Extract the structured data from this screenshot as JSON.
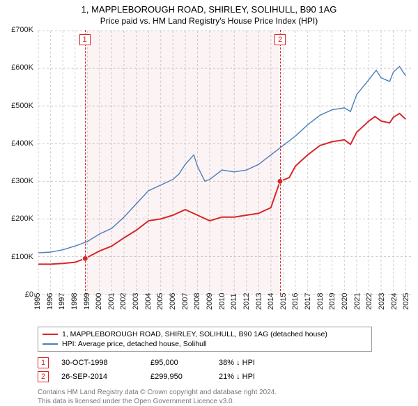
{
  "title": "1, MAPPLEBOROUGH ROAD, SHIRLEY, SOLIHULL, B90 1AG",
  "subtitle": "Price paid vs. HM Land Registry's House Price Index (HPI)",
  "chart": {
    "type": "line",
    "xlim": [
      1995,
      2025.5
    ],
    "ylim": [
      0,
      700000
    ],
    "ytick_step": 100000,
    "yticks": [
      "£0",
      "£100K",
      "£200K",
      "£300K",
      "£400K",
      "£500K",
      "£600K",
      "£700K"
    ],
    "xticks": [
      1995,
      1996,
      1997,
      1998,
      1999,
      2000,
      2001,
      2002,
      2003,
      2004,
      2005,
      2006,
      2007,
      2008,
      2009,
      2010,
      2011,
      2012,
      2013,
      2014,
      2015,
      2016,
      2017,
      2018,
      2019,
      2020,
      2021,
      2022,
      2023,
      2024,
      2025
    ],
    "background_color": "#ffffff",
    "grid_color": "#cccccc",
    "grid_dash": "3 3",
    "series": {
      "paid": {
        "label": "1, MAPPLEBOROUGH ROAD, SHIRLEY, SOLIHULL, B90 1AG (detached house)",
        "color": "#d62728",
        "line_width": 2,
        "marker": "circle",
        "marker_size": 5,
        "data": [
          [
            1995,
            80000
          ],
          [
            1996,
            80000
          ],
          [
            1997,
            82000
          ],
          [
            1998,
            85000
          ],
          [
            1998.83,
            95000
          ],
          [
            2000,
            115000
          ],
          [
            2001,
            128000
          ],
          [
            2002,
            150000
          ],
          [
            2003,
            170000
          ],
          [
            2004,
            195000
          ],
          [
            2005,
            200000
          ],
          [
            2006,
            210000
          ],
          [
            2007,
            225000
          ],
          [
            2008,
            210000
          ],
          [
            2009,
            195000
          ],
          [
            2010,
            205000
          ],
          [
            2011,
            205000
          ],
          [
            2012,
            210000
          ],
          [
            2013,
            215000
          ],
          [
            2014,
            230000
          ],
          [
            2014.74,
            299950
          ],
          [
            2015.5,
            310000
          ],
          [
            2016,
            340000
          ],
          [
            2017,
            370000
          ],
          [
            2018,
            395000
          ],
          [
            2019,
            405000
          ],
          [
            2020,
            410000
          ],
          [
            2020.5,
            398000
          ],
          [
            2021,
            430000
          ],
          [
            2022,
            460000
          ],
          [
            2022.5,
            472000
          ],
          [
            2023,
            460000
          ],
          [
            2023.7,
            455000
          ],
          [
            2024,
            470000
          ],
          [
            2024.5,
            480000
          ],
          [
            2025,
            465000
          ]
        ]
      },
      "hpi": {
        "label": "HPI: Average price, detached house, Solihull",
        "color": "#4a7ebb",
        "line_width": 1.4,
        "data": [
          [
            1995,
            110000
          ],
          [
            1996,
            112000
          ],
          [
            1997,
            118000
          ],
          [
            1998,
            128000
          ],
          [
            1999,
            140000
          ],
          [
            2000,
            160000
          ],
          [
            2001,
            175000
          ],
          [
            2002,
            205000
          ],
          [
            2003,
            240000
          ],
          [
            2004,
            275000
          ],
          [
            2005,
            290000
          ],
          [
            2006,
            305000
          ],
          [
            2006.5,
            320000
          ],
          [
            2007,
            345000
          ],
          [
            2007.7,
            370000
          ],
          [
            2008,
            340000
          ],
          [
            2008.6,
            300000
          ],
          [
            2009,
            305000
          ],
          [
            2010,
            330000
          ],
          [
            2011,
            325000
          ],
          [
            2012,
            330000
          ],
          [
            2013,
            345000
          ],
          [
            2014,
            370000
          ],
          [
            2015,
            395000
          ],
          [
            2016,
            420000
          ],
          [
            2017,
            450000
          ],
          [
            2018,
            475000
          ],
          [
            2019,
            490000
          ],
          [
            2020,
            495000
          ],
          [
            2020.5,
            485000
          ],
          [
            2021,
            530000
          ],
          [
            2022,
            570000
          ],
          [
            2022.6,
            595000
          ],
          [
            2023,
            575000
          ],
          [
            2023.7,
            565000
          ],
          [
            2024,
            590000
          ],
          [
            2024.5,
            605000
          ],
          [
            2025,
            580000
          ]
        ]
      }
    },
    "markers_events": [
      {
        "n": "1",
        "year": 1998.83,
        "color": "#d62728"
      },
      {
        "n": "2",
        "year": 2014.74,
        "color": "#d62728"
      }
    ],
    "overlay": {
      "from": 1998.83,
      "to": 2014.74,
      "color": "#cc3344"
    },
    "pricepoints": [
      {
        "year": 1998.83,
        "value": 95000
      },
      {
        "year": 2014.74,
        "value": 299950
      }
    ]
  },
  "legend": [
    {
      "key": "paid"
    },
    {
      "key": "hpi"
    }
  ],
  "events": [
    {
      "n": "1",
      "date": "30-OCT-1998",
      "price": "£95,000",
      "diff": "38%",
      "arrow": "↓",
      "vs": "HPI",
      "color": "#d62728"
    },
    {
      "n": "2",
      "date": "26-SEP-2014",
      "price": "£299,950",
      "diff": "21%",
      "arrow": "↓",
      "vs": "HPI",
      "color": "#d62728"
    }
  ],
  "footer": {
    "l1": "Contains HM Land Registry data © Crown copyright and database right 2024.",
    "l2": "This data is licensed under the Open Government Licence v3.0."
  }
}
